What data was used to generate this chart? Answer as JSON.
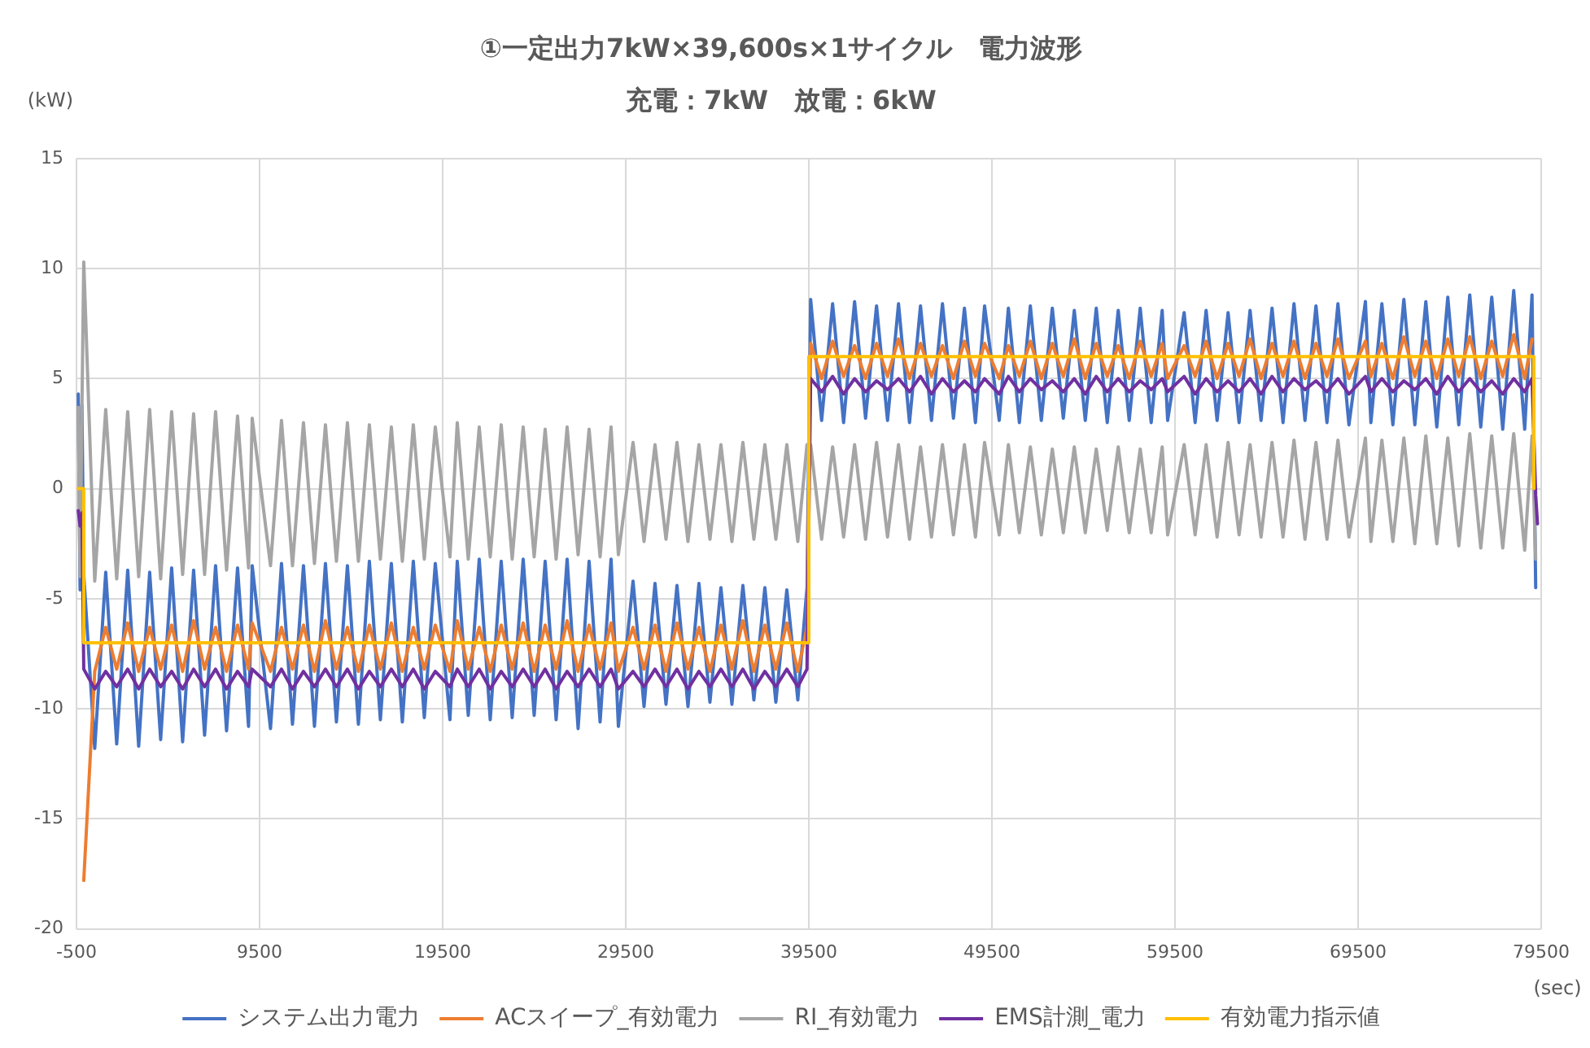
{
  "chart_data": {
    "type": "line",
    "title": "①一定出力7kW×39,600s×1サイクル　電力波形",
    "subtitle": "充電：7kW　放電：6kW",
    "xlabel": "(sec)",
    "ylabel": "(kW)",
    "x": [
      -400,
      -300,
      -200,
      -100,
      500,
      1100,
      1700,
      2300,
      2900,
      3500,
      4100,
      4700,
      5300,
      5900,
      6500,
      7100,
      7700,
      8300,
      8900,
      9100,
      10100,
      10700,
      11300,
      11900,
      12500,
      13100,
      13700,
      14300,
      14900,
      15500,
      16100,
      16700,
      17300,
      17900,
      18500,
      19100,
      19900,
      20300,
      20900,
      21500,
      22100,
      22700,
      23300,
      23900,
      24500,
      25100,
      25700,
      26300,
      26900,
      27500,
      28100,
      28700,
      29100,
      29900,
      30500,
      31100,
      31700,
      32300,
      32900,
      33500,
      34100,
      34700,
      35300,
      35900,
      36500,
      37100,
      37700,
      38300,
      38900,
      39400,
      39600,
      40200,
      40800,
      41400,
      42000,
      42600,
      43200,
      43800,
      44400,
      45000,
      45600,
      46200,
      46800,
      47400,
      48000,
      48600,
      49100,
      49900,
      50400,
      51000,
      51600,
      52200,
      52800,
      53400,
      54000,
      54600,
      55200,
      55800,
      56400,
      57000,
      57600,
      58200,
      58800,
      59100,
      60000,
      60600,
      61200,
      61800,
      62400,
      63000,
      63600,
      64200,
      64800,
      65400,
      66000,
      66600,
      67200,
      67800,
      68400,
      69000,
      69900,
      70200,
      70800,
      71400,
      72000,
      72600,
      73200,
      73800,
      74400,
      75000,
      75600,
      76200,
      76800,
      77400,
      78000,
      78600,
      79000,
      79200,
      79300
    ],
    "series": [
      {
        "name": "システム出力電力",
        "color": "#4472c4",
        "values": [
          4.3,
          -4.6,
          3.8,
          -3.9,
          -11.8,
          -3.8,
          -11.6,
          -3.7,
          -11.7,
          -3.8,
          -11.4,
          -3.6,
          -11.5,
          -3.7,
          -11.2,
          -3.5,
          -11.0,
          -3.6,
          -10.8,
          -3.5,
          -10.9,
          -3.4,
          -10.7,
          -3.5,
          -10.8,
          -3.4,
          -10.6,
          -3.5,
          -10.7,
          -3.3,
          -10.5,
          -3.4,
          -10.6,
          -3.3,
          -10.4,
          -3.4,
          -10.5,
          -3.3,
          -10.3,
          -3.2,
          -10.5,
          -3.3,
          -10.4,
          -3.2,
          -10.3,
          -3.3,
          -10.5,
          -3.2,
          -10.9,
          -3.3,
          -10.6,
          -3.2,
          -10.8,
          -4.2,
          -9.9,
          -4.3,
          -9.8,
          -4.4,
          -9.9,
          -4.3,
          -9.7,
          -4.5,
          -9.8,
          -4.4,
          -9.6,
          -4.5,
          -9.7,
          -4.6,
          -9.6,
          -4.5,
          8.6,
          3.1,
          8.4,
          3.0,
          8.5,
          3.2,
          8.3,
          3.1,
          8.4,
          3.0,
          8.3,
          3.1,
          8.4,
          3.2,
          8.2,
          3.0,
          8.3,
          3.1,
          8.2,
          3.0,
          8.3,
          3.1,
          8.2,
          3.2,
          8.1,
          3.1,
          8.2,
          3.0,
          8.1,
          3.1,
          8.2,
          3.0,
          8.1,
          3.1,
          8.0,
          3.0,
          8.1,
          3.1,
          8.0,
          3.0,
          8.1,
          3.1,
          8.2,
          3.0,
          8.4,
          3.1,
          8.3,
          3.0,
          8.4,
          2.9,
          8.5,
          3.0,
          8.4,
          2.9,
          8.6,
          2.9,
          8.5,
          2.8,
          8.7,
          2.9,
          8.8,
          2.8,
          8.7,
          2.7,
          9.0,
          2.7,
          8.8,
          -4.5,
          null
        ]
      },
      {
        "name": "ACスイープ_有効電力",
        "color": "#ed7d31",
        "values": [
          null,
          null,
          null,
          -17.8,
          -8.3,
          -6.3,
          -8.2,
          -6.1,
          -8.3,
          -6.3,
          -8.2,
          -6.2,
          -8.3,
          -6.0,
          -8.2,
          -6.3,
          -8.3,
          -6.2,
          -8.2,
          -6.1,
          -8.3,
          -6.3,
          -8.2,
          -6.2,
          -8.3,
          -6.0,
          -8.2,
          -6.3,
          -8.3,
          -6.2,
          -8.2,
          -6.1,
          -8.3,
          -6.3,
          -8.2,
          -6.2,
          -8.3,
          -6.0,
          -8.2,
          -6.3,
          -8.3,
          -6.2,
          -8.2,
          -6.1,
          -8.3,
          -6.2,
          -8.2,
          -6.0,
          -8.3,
          -6.2,
          -8.2,
          -6.1,
          -8.3,
          -6.3,
          -8.2,
          -6.2,
          -8.3,
          -6.1,
          -8.2,
          -6.3,
          -8.3,
          -6.2,
          -8.2,
          -6.0,
          -8.3,
          -6.2,
          -8.2,
          -6.1,
          -8.3,
          -6.3,
          6.6,
          5.0,
          6.7,
          5.1,
          6.5,
          5.0,
          6.6,
          5.1,
          6.8,
          5.0,
          6.6,
          5.1,
          6.5,
          5.0,
          6.7,
          5.1,
          6.6,
          5.0,
          6.5,
          5.1,
          6.7,
          5.0,
          6.6,
          5.1,
          6.8,
          5.0,
          6.6,
          5.1,
          6.5,
          5.0,
          6.7,
          5.1,
          6.6,
          5.0,
          6.5,
          5.1,
          6.7,
          5.0,
          6.6,
          5.1,
          6.8,
          5.0,
          6.6,
          5.1,
          6.7,
          5.0,
          6.6,
          5.1,
          6.8,
          5.0,
          6.7,
          5.1,
          6.6,
          5.0,
          6.9,
          5.1,
          6.7,
          5.0,
          6.8,
          5.1,
          6.9,
          5.0,
          6.7,
          5.1,
          7.0,
          5.0,
          6.8,
          null,
          null
        ]
      },
      {
        "name": "RI_有効電力",
        "color": "#a5a5a5",
        "values": [
          3.7,
          -4.0,
          3.6,
          10.3,
          -4.2,
          3.6,
          -4.1,
          3.5,
          -4.0,
          3.6,
          -4.1,
          3.5,
          -3.9,
          3.4,
          -3.9,
          3.5,
          -3.7,
          3.3,
          -3.6,
          3.2,
          -3.5,
          3.1,
          -3.5,
          3.0,
          -3.4,
          2.9,
          -3.3,
          3.0,
          -3.3,
          2.9,
          -3.2,
          2.8,
          -3.3,
          2.9,
          -3.2,
          2.8,
          -3.1,
          3.0,
          -3.2,
          2.8,
          -3.1,
          2.9,
          -3.2,
          2.8,
          -3.1,
          2.7,
          -3.2,
          2.8,
          -3.0,
          2.7,
          -3.1,
          2.8,
          -3.0,
          2.1,
          -2.4,
          2.0,
          -2.3,
          2.1,
          -2.4,
          2.0,
          -2.3,
          2.0,
          -2.4,
          2.1,
          -2.3,
          2.0,
          -2.3,
          2.0,
          -2.4,
          2.0,
          2.0,
          -2.3,
          1.9,
          -2.2,
          2.0,
          -2.3,
          2.1,
          -2.2,
          2.0,
          -2.3,
          1.9,
          -2.2,
          2.0,
          -2.1,
          2.0,
          -2.2,
          2.1,
          -2.1,
          2.0,
          -2.0,
          1.9,
          -2.1,
          1.8,
          -2.0,
          1.9,
          -2.0,
          1.8,
          -1.9,
          1.9,
          -2.0,
          1.8,
          -2.0,
          1.9,
          -2.1,
          2.0,
          -2.1,
          2.0,
          -2.2,
          2.1,
          -2.1,
          2.0,
          -2.2,
          2.1,
          -2.2,
          2.2,
          -2.3,
          2.1,
          -2.3,
          2.2,
          -2.2,
          2.3,
          -2.4,
          2.2,
          -2.4,
          2.3,
          -2.5,
          2.4,
          -2.5,
          2.3,
          -2.6,
          2.5,
          -2.7,
          2.4,
          -2.7,
          2.5,
          -2.8,
          2.4,
          -3.2,
          null
        ]
      },
      {
        "name": "EMS計測_電力",
        "color": "#7030a0",
        "values": [
          -1.0,
          -1.7,
          -1.1,
          -8.2,
          -9.1,
          -8.3,
          -9.0,
          -8.2,
          -9.1,
          -8.2,
          -9.0,
          -8.3,
          -9.1,
          -8.2,
          -9.0,
          -8.2,
          -9.1,
          -8.3,
          -9.0,
          -8.2,
          -9.0,
          -8.2,
          -9.1,
          -8.3,
          -9.0,
          -8.2,
          -9.0,
          -8.2,
          -9.1,
          -8.3,
          -9.0,
          -8.2,
          -9.0,
          -8.2,
          -9.1,
          -8.3,
          -9.0,
          -8.2,
          -9.0,
          -8.2,
          -9.1,
          -8.3,
          -9.0,
          -8.2,
          -9.0,
          -8.2,
          -9.1,
          -8.3,
          -9.0,
          -8.2,
          -9.0,
          -8.2,
          -9.1,
          -8.3,
          -9.0,
          -8.2,
          -9.0,
          -8.2,
          -9.1,
          -8.3,
          -9.0,
          -8.2,
          -9.0,
          -8.2,
          -9.1,
          -8.3,
          -9.0,
          -8.2,
          -9.0,
          -8.2,
          5.0,
          4.4,
          5.1,
          4.3,
          5.0,
          4.4,
          4.9,
          4.5,
          5.0,
          4.4,
          5.1,
          4.3,
          5.0,
          4.4,
          4.9,
          4.4,
          5.0,
          4.3,
          5.1,
          4.4,
          5.0,
          4.5,
          4.9,
          4.4,
          5.0,
          4.3,
          5.1,
          4.4,
          5.0,
          4.4,
          4.9,
          4.5,
          5.0,
          4.4,
          5.1,
          4.3,
          5.0,
          4.4,
          4.9,
          4.4,
          5.0,
          4.3,
          5.1,
          4.4,
          5.0,
          4.5,
          4.9,
          4.4,
          5.0,
          4.3,
          5.1,
          4.4,
          5.0,
          4.4,
          4.9,
          4.5,
          5.0,
          4.3,
          5.1,
          4.4,
          5.0,
          4.4,
          4.9,
          4.3,
          5.0,
          4.4,
          5.0,
          -0.3,
          -1.6
        ]
      },
      {
        "name": "有効電力指示値",
        "color": "#ffc000",
        "x": [
          -400,
          -100,
          -100,
          39500,
          39500,
          79100,
          79100
        ],
        "values": [
          0,
          0,
          -7,
          -7,
          6,
          6,
          0
        ]
      }
    ],
    "xlim": [
      -500,
      79500
    ],
    "xticks": [
      -500,
      9500,
      19500,
      29500,
      39500,
      49500,
      59500,
      69500,
      79500
    ],
    "ylim": [
      -20,
      15
    ],
    "yticks": [
      -20,
      -15,
      -10,
      -5,
      0,
      5,
      10,
      15
    ],
    "grid": true,
    "legend": "bottom",
    "marker": "none"
  }
}
